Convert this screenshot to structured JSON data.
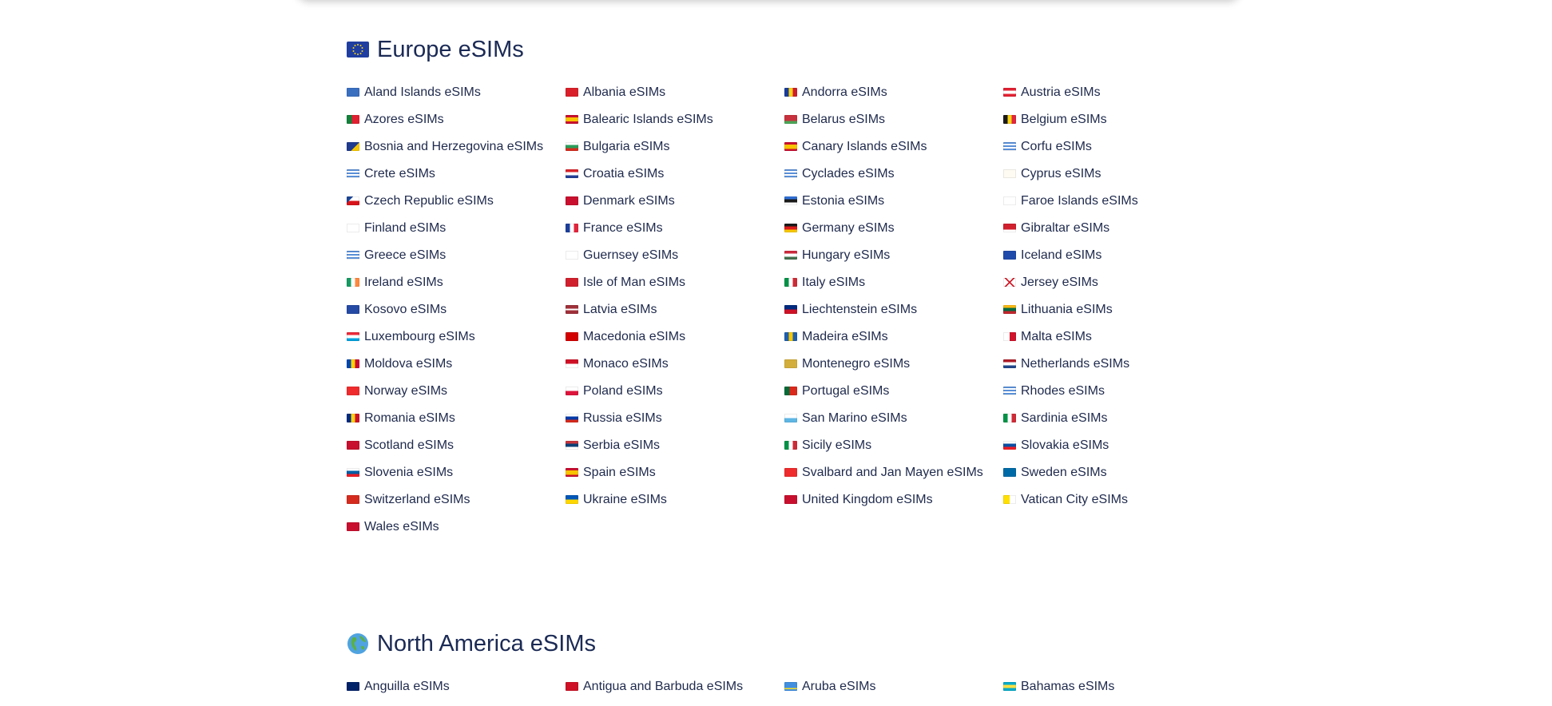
{
  "sections": [
    {
      "title": "Europe eSIMs",
      "icon": "eu-flag-icon",
      "items": [
        {
          "label": "Aland Islands eSIMs",
          "flag": "linear-gradient(#3a6fc0,#3a6fc0)"
        },
        {
          "label": "Albania eSIMs",
          "flag": "linear-gradient(#d9202a,#d9202a)"
        },
        {
          "label": "Andorra eSIMs",
          "flag": "linear-gradient(90deg,#1a3d9a 33%,#f7d31c 33% 66%,#d01c2a 66%)"
        },
        {
          "label": "Austria eSIMs",
          "flag": "linear-gradient(#e12032 33%,#fff 33% 66%,#e12032 66%)"
        },
        {
          "label": "Azores eSIMs",
          "flag": "linear-gradient(90deg,#12813b 40%,#e12032 40%)"
        },
        {
          "label": "Balearic Islands eSIMs",
          "flag": "linear-gradient(#c8102e 25%,#f9c300 25% 75%,#c8102e 75%)"
        },
        {
          "label": "Belarus eSIMs",
          "flag": "linear-gradient(#c8313e 66%,#4aa657 66%)"
        },
        {
          "label": "Belgium eSIMs",
          "flag": "linear-gradient(90deg,#1a1a1a 33%,#f9d616 33% 66%,#e1263c 66%)"
        },
        {
          "label": "Bosnia and Herzegovina eSIMs",
          "flag": "linear-gradient(135deg,#1f3b8f 60%,#f6c600 60%)"
        },
        {
          "label": "Bulgaria eSIMs",
          "flag": "linear-gradient(#ffffff 33%,#2a9c5a 33% 66%,#d52b1e 66%)"
        },
        {
          "label": "Canary Islands eSIMs",
          "flag": "linear-gradient(#c8102e 25%,#f9c300 25% 75%,#c8102e 75%)"
        },
        {
          "label": "Corfu eSIMs",
          "flag": "repeating-linear-gradient(#5a8fd6 0 2px,#ffffff 2px 4px)"
        },
        {
          "label": "Crete eSIMs",
          "flag": "repeating-linear-gradient(#5a8fd6 0 2px,#ffffff 2px 4px)"
        },
        {
          "label": "Croatia eSIMs",
          "flag": "linear-gradient(#d8232a 33%,#ffffff 33% 66%,#233f94 66%)"
        },
        {
          "label": "Cyclades eSIMs",
          "flag": "repeating-linear-gradient(#5a8fd6 0 2px,#ffffff 2px 4px)"
        },
        {
          "label": "Cyprus eSIMs",
          "flag": "linear-gradient(#fdfbf2,#fdfbf2)"
        },
        {
          "label": "Czech Republic eSIMs",
          "flag": "linear-gradient(135deg,#1d4695 30%,transparent 30%),linear-gradient(#ffffff 50%,#d7141a 50%)"
        },
        {
          "label": "Denmark eSIMs",
          "flag": "linear-gradient(#c8102e,#c8102e)"
        },
        {
          "label": "Estonia eSIMs",
          "flag": "linear-gradient(#2f6fd6 33%,#1a1a1a 33% 66%,#ffffff 66%)"
        },
        {
          "label": "Faroe Islands eSIMs",
          "flag": "linear-gradient(#ffffff,#ffffff)"
        },
        {
          "label": "Finland eSIMs",
          "flag": "linear-gradient(#ffffff,#ffffff)"
        },
        {
          "label": "France eSIMs",
          "flag": "linear-gradient(90deg,#1d3f9a 33%,#ffffff 33% 66%,#e1263c 66%)"
        },
        {
          "label": "Germany eSIMs",
          "flag": "linear-gradient(#1a1a1a 33%,#dd1a1a 33% 66%,#f7c800 66%)"
        },
        {
          "label": "Gibraltar eSIMs",
          "flag": "linear-gradient(#d0202e 70%,#ffffff 70%)"
        },
        {
          "label": "Greece eSIMs",
          "flag": "repeating-linear-gradient(#5a8fd6 0 2px,#ffffff 2px 4px)"
        },
        {
          "label": "Guernsey eSIMs",
          "flag": "linear-gradient(#ffffff,#ffffff)"
        },
        {
          "label": "Hungary eSIMs",
          "flag": "linear-gradient(#cd2a3e 33%,#ffffff 33% 66%,#436f4d 66%)"
        },
        {
          "label": "Iceland eSIMs",
          "flag": "linear-gradient(#1f4bab,#1f4bab)"
        },
        {
          "label": "Ireland eSIMs",
          "flag": "linear-gradient(90deg,#169b62 33%,#ffffff 33% 66%,#ff883e 66%)"
        },
        {
          "label": "Isle of Man eSIMs",
          "flag": "linear-gradient(#d0202e,#d0202e)"
        },
        {
          "label": "Italy eSIMs",
          "flag": "linear-gradient(90deg,#009246 33%,#ffffff 33% 66%,#ce2b37 66%)"
        },
        {
          "label": "Jersey eSIMs",
          "flag": "linear-gradient(45deg,transparent 45%,#d0202e 45% 55%,transparent 55%),linear-gradient(-45deg,transparent 45%,#d0202e 45% 55%,transparent 55%),linear-gradient(#fff,#fff)"
        },
        {
          "label": "Kosovo eSIMs",
          "flag": "linear-gradient(#254aa5,#254aa5)"
        },
        {
          "label": "Latvia eSIMs",
          "flag": "linear-gradient(#9e3039 40%,#ffffff 40% 60%,#9e3039 60%)"
        },
        {
          "label": "Liechtenstein eSIMs",
          "flag": "linear-gradient(#002b7f 50%,#ce1126 50%)"
        },
        {
          "label": "Lithuania eSIMs",
          "flag": "linear-gradient(#fdb913 33%,#006a44 33% 66%,#c1272d 66%)"
        },
        {
          "label": "Luxembourg eSIMs",
          "flag": "linear-gradient(#ed2939 33%,#ffffff 33% 66%,#00a1de 66%)"
        },
        {
          "label": "Macedonia eSIMs",
          "flag": "linear-gradient(#d20000,#d20000)"
        },
        {
          "label": "Madeira eSIMs",
          "flag": "linear-gradient(90deg,#1f5fae 33%,#f7c800 33% 66%,#1f5fae 66%)"
        },
        {
          "label": "Malta eSIMs",
          "flag": "linear-gradient(90deg,#ffffff 50%,#cf142b 50%)"
        },
        {
          "label": "Moldova eSIMs",
          "flag": "linear-gradient(90deg,#0046ae 33%,#ffd200 33% 66%,#cc092f 66%)"
        },
        {
          "label": "Monaco eSIMs",
          "flag": "linear-gradient(#ce1126 50%,#ffffff 50%)"
        },
        {
          "label": "Montenegro eSIMs",
          "flag": "linear-gradient(#d3ae3b,#d3ae3b)"
        },
        {
          "label": "Netherlands eSIMs",
          "flag": "linear-gradient(#ae1c28 33%,#ffffff 33% 66%,#21468b 66%)"
        },
        {
          "label": "Norway eSIMs",
          "flag": "linear-gradient(#ef2b2d,#ef2b2d)"
        },
        {
          "label": "Poland eSIMs",
          "flag": "linear-gradient(#ffffff 50%,#dc143c 50%)"
        },
        {
          "label": "Portugal eSIMs",
          "flag": "linear-gradient(90deg,#046a38 40%,#da291c 40%)"
        },
        {
          "label": "Rhodes eSIMs",
          "flag": "repeating-linear-gradient(#5a8fd6 0 2px,#ffffff 2px 4px)"
        },
        {
          "label": "Romania eSIMs",
          "flag": "linear-gradient(90deg,#002b7f 33%,#fcd116 33% 66%,#ce1126 66%)"
        },
        {
          "label": "Russia eSIMs",
          "flag": "linear-gradient(#ffffff 33%,#0039a6 33% 66%,#d52b1e 66%)"
        },
        {
          "label": "San Marino eSIMs",
          "flag": "linear-gradient(#ffffff 50%,#5eb6e4 50%)"
        },
        {
          "label": "Sardinia eSIMs",
          "flag": "linear-gradient(90deg,#009246 33%,#ffffff 33% 66%,#ce2b37 66%)"
        },
        {
          "label": "Scotland eSIMs",
          "flag": "linear-gradient(#c8102e,#c8102e)"
        },
        {
          "label": "Serbia eSIMs",
          "flag": "linear-gradient(#c6363c 33%,#0c4076 33% 66%,#ffffff 66%)"
        },
        {
          "label": "Sicily eSIMs",
          "flag": "linear-gradient(90deg,#009246 33%,#ffffff 33% 66%,#ce2b37 66%)"
        },
        {
          "label": "Slovakia eSIMs",
          "flag": "linear-gradient(#ffffff 33%,#0b4ea2 33% 66%,#ee1c25 66%)"
        },
        {
          "label": "Slovenia eSIMs",
          "flag": "linear-gradient(#ffffff 33%,#005da4 33% 66%,#ed1c24 66%)"
        },
        {
          "label": "Spain eSIMs",
          "flag": "linear-gradient(#c8102e 25%,#f9c300 25% 75%,#c8102e 75%)"
        },
        {
          "label": "Svalbard and Jan Mayen eSIMs",
          "flag": "linear-gradient(#ef2b2d,#ef2b2d)"
        },
        {
          "label": "Sweden eSIMs",
          "flag": "linear-gradient(#006aa7,#006aa7)"
        },
        {
          "label": "Switzerland eSIMs",
          "flag": "linear-gradient(#d52b1e,#d52b1e)"
        },
        {
          "label": "Ukraine eSIMs",
          "flag": "linear-gradient(#0057b7 50%,#ffd700 50%)"
        },
        {
          "label": "United Kingdom eSIMs",
          "flag": "linear-gradient(#c8102e,#c8102e)"
        },
        {
          "label": "Vatican City eSIMs",
          "flag": "linear-gradient(90deg,#ffe000 50%,#ffffff 50%)"
        },
        {
          "label": "Wales eSIMs",
          "flag": "linear-gradient(#c8102e,#c8102e)"
        }
      ]
    },
    {
      "title": "North America eSIMs",
      "icon": "globe-americas-icon",
      "items": [
        {
          "label": "Anguilla eSIMs",
          "flag": "linear-gradient(#012169,#012169)"
        },
        {
          "label": "Antigua and Barbuda eSIMs",
          "flag": "linear-gradient(#ce1126,#ce1126)"
        },
        {
          "label": "Aruba eSIMs",
          "flag": "linear-gradient(#418fde 70%,#fbe122 70% 80%,#418fde 80%)"
        },
        {
          "label": "Bahamas eSIMs",
          "flag": "linear-gradient(#00abc9 33%,#fae042 33% 66%,#00abc9 66%)"
        }
      ]
    }
  ]
}
